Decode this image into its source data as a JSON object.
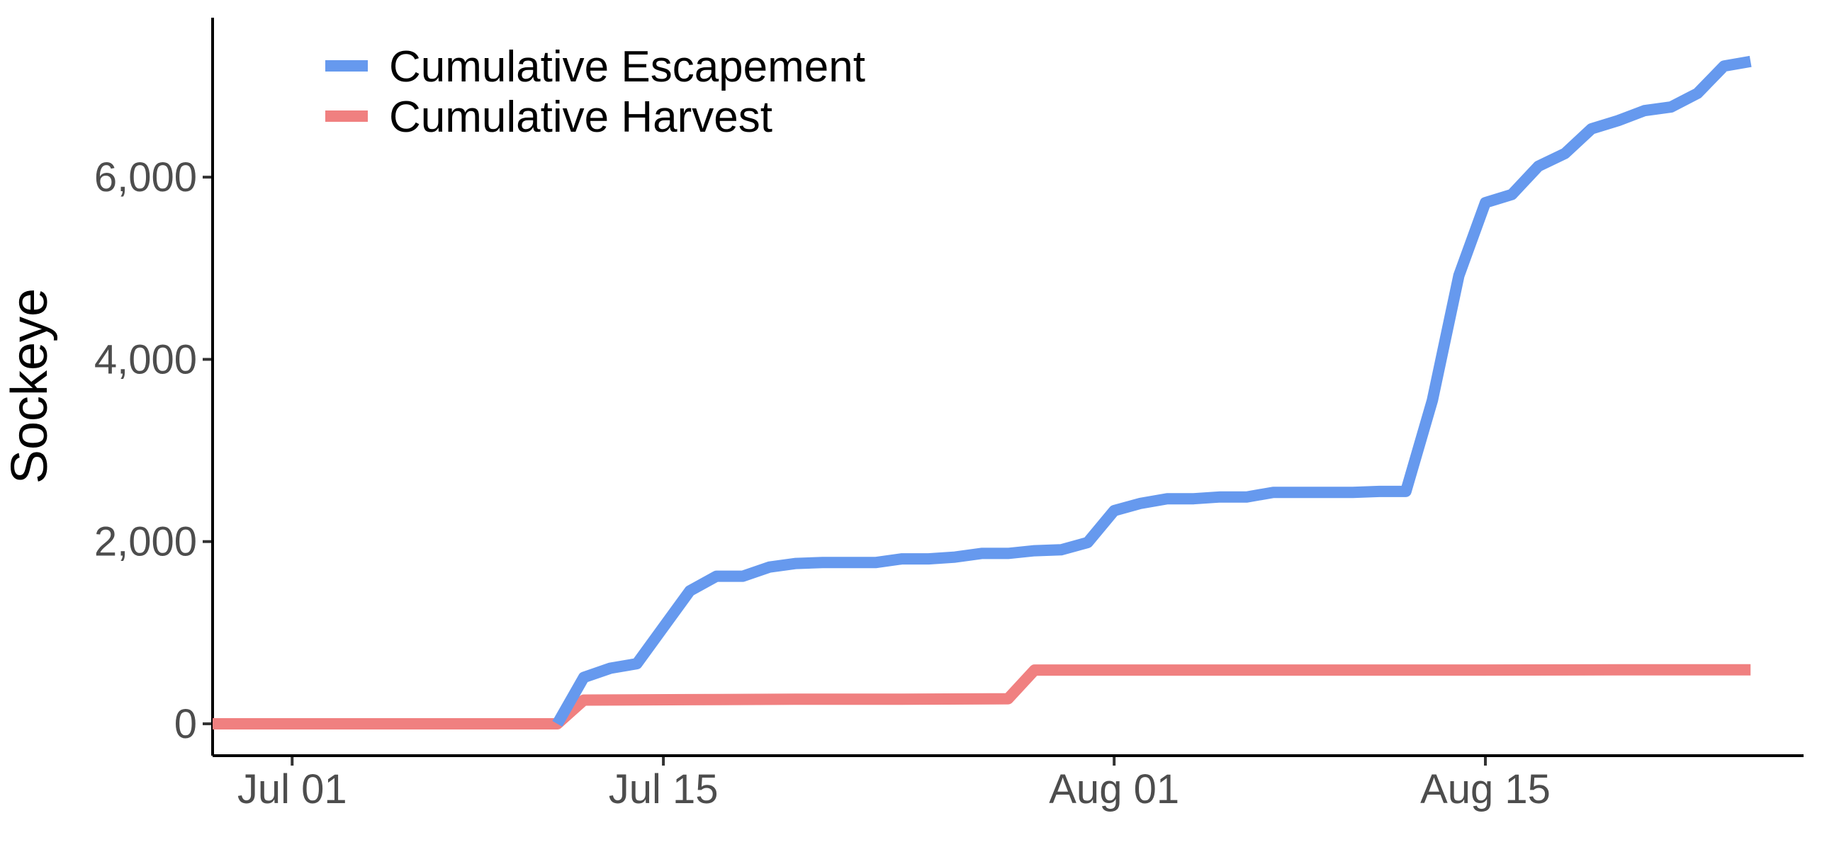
{
  "chart_data": {
    "type": "line",
    "xlabel": "",
    "ylabel": "Sockeye",
    "x_axis": {
      "scale": "date",
      "range": [
        "2018-06-28",
        "2018-08-27"
      ],
      "ticks": [
        {
          "value": "2018-07-01",
          "label": "Jul 01"
        },
        {
          "value": "2018-07-15",
          "label": "Jul 15"
        },
        {
          "value": "2018-08-01",
          "label": "Aug 01"
        },
        {
          "value": "2018-08-15",
          "label": "Aug 15"
        }
      ]
    },
    "y_axis": {
      "range": [
        -350,
        7750
      ],
      "ticks": [
        {
          "value": 0,
          "label": "0"
        },
        {
          "value": 2000,
          "label": "2,000"
        },
        {
          "value": 4000,
          "label": "4,000"
        },
        {
          "value": 6000,
          "label": "6,000"
        }
      ]
    },
    "grid": false,
    "legend_position": "top-left",
    "series": [
      {
        "name": "Cumulative Escapement",
        "color": "#6699EE",
        "points": [
          [
            "2018-07-11",
            0
          ],
          [
            "2018-07-12",
            510
          ],
          [
            "2018-07-13",
            610
          ],
          [
            "2018-07-14",
            660
          ],
          [
            "2018-07-15",
            1060
          ],
          [
            "2018-07-16",
            1460
          ],
          [
            "2018-07-17",
            1620
          ],
          [
            "2018-07-18",
            1620
          ],
          [
            "2018-07-19",
            1720
          ],
          [
            "2018-07-20",
            1760
          ],
          [
            "2018-07-21",
            1770
          ],
          [
            "2018-07-22",
            1770
          ],
          [
            "2018-07-23",
            1770
          ],
          [
            "2018-07-24",
            1810
          ],
          [
            "2018-07-25",
            1810
          ],
          [
            "2018-07-26",
            1830
          ],
          [
            "2018-07-27",
            1870
          ],
          [
            "2018-07-28",
            1870
          ],
          [
            "2018-07-29",
            1900
          ],
          [
            "2018-07-30",
            1910
          ],
          [
            "2018-07-31",
            1990
          ],
          [
            "2018-08-01",
            2340
          ],
          [
            "2018-08-02",
            2420
          ],
          [
            "2018-08-03",
            2470
          ],
          [
            "2018-08-04",
            2470
          ],
          [
            "2018-08-05",
            2490
          ],
          [
            "2018-08-06",
            2490
          ],
          [
            "2018-08-07",
            2540
          ],
          [
            "2018-08-08",
            2540
          ],
          [
            "2018-08-09",
            2540
          ],
          [
            "2018-08-10",
            2540
          ],
          [
            "2018-08-11",
            2550
          ],
          [
            "2018-08-12",
            2550
          ],
          [
            "2018-08-13",
            3550
          ],
          [
            "2018-08-14",
            4920
          ],
          [
            "2018-08-15",
            5720
          ],
          [
            "2018-08-16",
            5810
          ],
          [
            "2018-08-17",
            6120
          ],
          [
            "2018-08-18",
            6260
          ],
          [
            "2018-08-19",
            6530
          ],
          [
            "2018-08-20",
            6620
          ],
          [
            "2018-08-21",
            6730
          ],
          [
            "2018-08-22",
            6770
          ],
          [
            "2018-08-23",
            6920
          ],
          [
            "2018-08-24",
            7220
          ],
          [
            "2018-08-25",
            7270
          ]
        ]
      },
      {
        "name": "Cumulative Harvest",
        "color": "#F08080",
        "points": [
          [
            "2018-06-28",
            0
          ],
          [
            "2018-07-01",
            0
          ],
          [
            "2018-07-05",
            0
          ],
          [
            "2018-07-10",
            0
          ],
          [
            "2018-07-11",
            0
          ],
          [
            "2018-07-12",
            260
          ],
          [
            "2018-07-16",
            265
          ],
          [
            "2018-07-20",
            270
          ],
          [
            "2018-07-24",
            270
          ],
          [
            "2018-07-28",
            275
          ],
          [
            "2018-07-29",
            590
          ],
          [
            "2018-08-01",
            590
          ],
          [
            "2018-08-05",
            590
          ],
          [
            "2018-08-10",
            590
          ],
          [
            "2018-08-15",
            590
          ],
          [
            "2018-08-20",
            592
          ],
          [
            "2018-08-25",
            592
          ]
        ]
      }
    ]
  }
}
